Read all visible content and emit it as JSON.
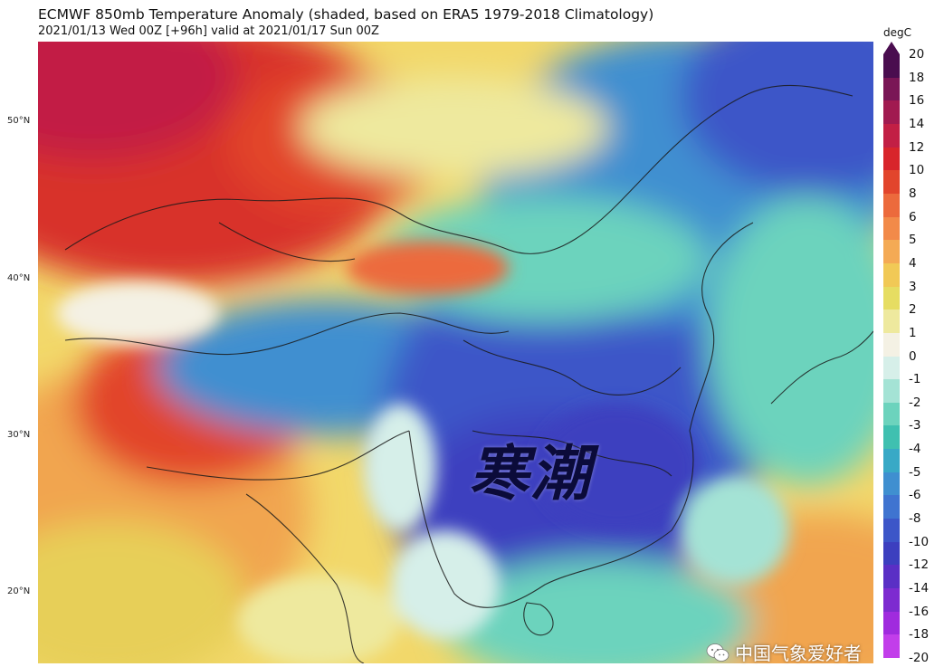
{
  "header": {
    "title": "ECMWF 850mb Temperature Anomaly (shaded, based on ERA5 1979-2018 Climatology)",
    "subtitle": "2021/01/13 Wed 00Z [+96h] valid at 2021/01/17 Sun 00Z"
  },
  "map": {
    "lat_labels": [
      "50°N",
      "40°N",
      "30°N",
      "20°N"
    ],
    "overlay_text": "寒潮"
  },
  "colorbar": {
    "unit": "degC",
    "ticks": [
      "20",
      "18",
      "16",
      "14",
      "12",
      "10",
      "8",
      "6",
      "5",
      "4",
      "3",
      "2",
      "1",
      "0",
      "-1",
      "-2",
      "-3",
      "-4",
      "-5",
      "-6",
      "-8",
      "-10",
      "-12",
      "-14",
      "-16",
      "-18",
      "-20"
    ],
    "colors": [
      "#4a0d4f",
      "#7a1656",
      "#a11a50",
      "#c21f45",
      "#d8252b",
      "#e2452c",
      "#ec6a3c",
      "#f28a49",
      "#f4aa55",
      "#f1c956",
      "#e6dd62",
      "#eee99e",
      "#f4f1e4",
      "#d6efe9",
      "#a4e3d5",
      "#6cd3bd",
      "#3fc0b0",
      "#38a9c6",
      "#3f8fd0",
      "#3f74d0",
      "#3c56c8",
      "#3c3fbf",
      "#5a2fc5",
      "#7d2bd0",
      "#a02bde",
      "#c23eea"
    ]
  },
  "watermark": {
    "text": "中国气象爱好者"
  }
}
